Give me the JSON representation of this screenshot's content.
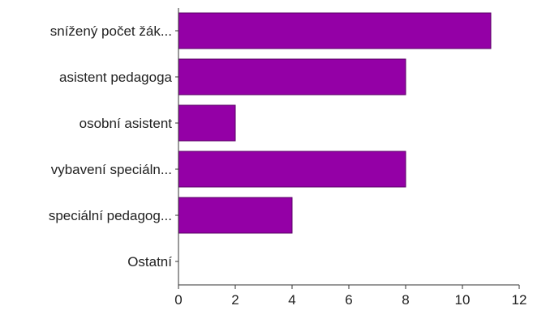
{
  "chart_data": {
    "type": "bar",
    "orientation": "horizontal",
    "categories": [
      "snížený počet žák...",
      "asistent pedagoga",
      "osobní asistent",
      "vybavení speciáln...",
      "speciální pedagog...",
      "Ostatní"
    ],
    "values": [
      11,
      8,
      2,
      8,
      4,
      0
    ],
    "xlim": [
      0,
      12
    ],
    "xticks": [
      "0",
      "2",
      "4",
      "6",
      "8",
      "10",
      "12"
    ],
    "grid": false,
    "legend": "none",
    "title": "",
    "xlabel": "",
    "ylabel": "",
    "colors": {
      "bar": "#9400a6",
      "bar_border": "#5a0066",
      "axis": "#333333"
    }
  }
}
